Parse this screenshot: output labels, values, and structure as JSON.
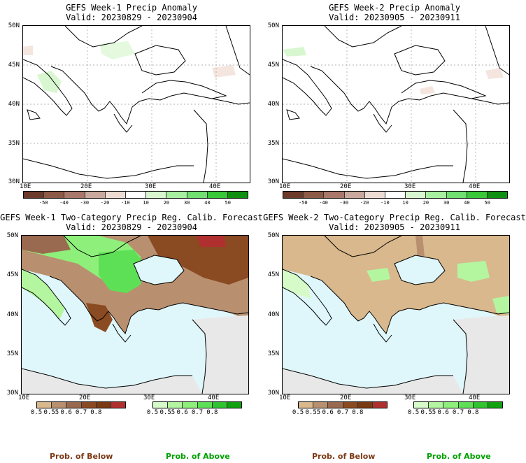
{
  "panels": [
    {
      "title": "GEFS Week-1 Precip Anomaly",
      "valid": "Valid: 20230829 - 20230904"
    },
    {
      "title": "GEFS Week-2 Precip Anomaly",
      "valid": "Valid: 20230905 - 20230911"
    },
    {
      "title": "GEFS Week-1 Two-Category Precip Reg. Calib. Forecast",
      "valid": "Valid: 20230829 - 20230904"
    },
    {
      "title": "GEFS Week-2 Two-Category Precip Reg. Calib. Forecast",
      "valid": "Valid: 20230905 - 20230911"
    }
  ],
  "axes": {
    "lat_labels": [
      "50N",
      "45N",
      "40N",
      "35N",
      "30N"
    ],
    "lon_labels": [
      "10E",
      "20E",
      "30E",
      "40E"
    ]
  },
  "anomaly_colorbar": {
    "labels": [
      "-50",
      "-40",
      "-30",
      "-20",
      "-10",
      "10",
      "20",
      "30",
      "40",
      "50"
    ],
    "colors": [
      "#6b3a2a",
      "#8c5a46",
      "#a9786a",
      "#c9a99d",
      "#ecdcd4",
      "#ffffff",
      "#d8f7d0",
      "#a8f0a0",
      "#70e070",
      "#38c838",
      "#109010"
    ]
  },
  "prob_colorbar_below": {
    "labels": [
      "0.5",
      "0.55",
      "0.6",
      "0.7",
      "0.8"
    ],
    "colors": [
      "#d8b88c",
      "#b89070",
      "#9a6a50",
      "#8a4a22",
      "#7a3a14",
      "#b03030"
    ]
  },
  "prob_colorbar_above": {
    "labels": [
      "0.5",
      "0.55",
      "0.6",
      "0.7",
      "0.8"
    ],
    "colors": [
      "#d6fbc8",
      "#b4f6a0",
      "#8ef07a",
      "#5ee056",
      "#30c430",
      "#10a010"
    ]
  },
  "legend": {
    "below": "Prob. of Below",
    "above": "Prob. of Above",
    "below_color": "#7a3a14",
    "above_color": "#00a000"
  },
  "colors": {
    "sea_fill": "#dff7fb",
    "land_gray": "#e8e8e8"
  }
}
